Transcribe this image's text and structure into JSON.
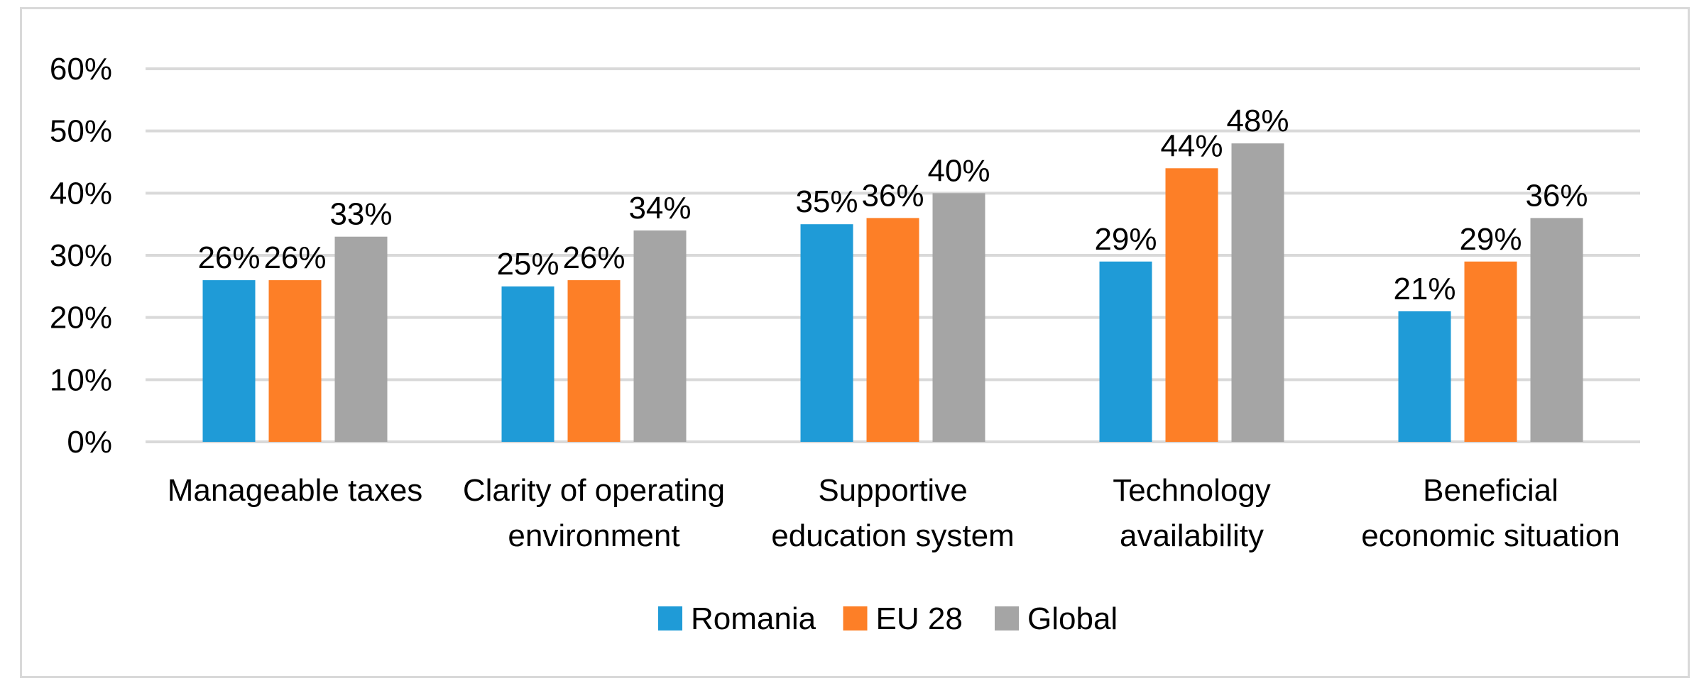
{
  "chart_data": {
    "type": "bar",
    "title": "",
    "xlabel": "",
    "ylabel": "",
    "ylim": [
      0,
      0.6
    ],
    "yticks": [
      "0%",
      "10%",
      "20%",
      "30%",
      "40%",
      "50%",
      "60%"
    ],
    "categories": [
      [
        "Manageable taxes"
      ],
      [
        "Clarity of operating",
        "environment"
      ],
      [
        "Supportive",
        "education system"
      ],
      [
        "Technology",
        "availability"
      ],
      [
        "Beneficial",
        "economic situation"
      ]
    ],
    "series": [
      {
        "name": "Romania",
        "color": "#1f9bd7",
        "values": [
          0.26,
          0.25,
          0.35,
          0.29,
          0.21
        ],
        "labels": [
          "26%",
          "25%",
          "35%",
          "29%",
          "21%"
        ]
      },
      {
        "name": "EU 28",
        "color": "#fd7f27",
        "values": [
          0.26,
          0.26,
          0.36,
          0.44,
          0.29
        ],
        "labels": [
          "26%",
          "26%",
          "36%",
          "44%",
          "29%"
        ]
      },
      {
        "name": "Global",
        "color": "#a5a5a5",
        "values": [
          0.33,
          0.34,
          0.4,
          0.48,
          0.36
        ],
        "labels": [
          "33%",
          "34%",
          "40%",
          "48%",
          "36%"
        ]
      }
    ],
    "grid": true,
    "legend_position": "bottom"
  }
}
